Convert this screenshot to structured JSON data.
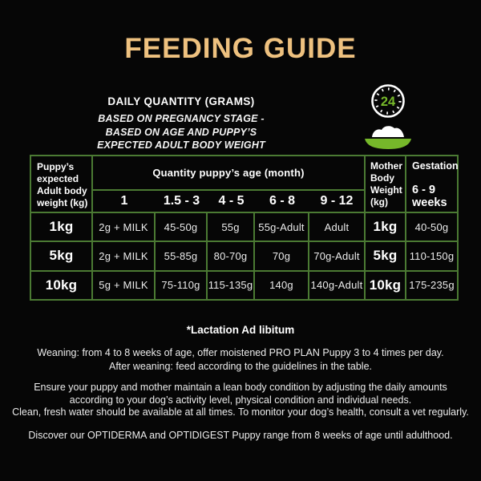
{
  "colors": {
    "gold": "#eec17f",
    "accent_green": "#76b82a",
    "table_border_green": "#4b7a33"
  },
  "title": "FEEDING GUIDE",
  "subtitle": {
    "heading": "DAILY QUANTITY (GRAMS)",
    "lines": [
      "BASED ON PREGNANCY STAGE -",
      "BASED ON AGE AND PUPPY’S",
      "EXPECTED ADULT BODY WEIGHT"
    ]
  },
  "icons": {
    "clock": "24h-clock-icon",
    "clock_label": "24",
    "bowl": "food-bowl-icon"
  },
  "table": {
    "col1_header": "Puppy’s expected Adult body weight (kg)",
    "quantity_header": "Quantity puppy’s age (month)",
    "month_columns": [
      "1",
      "1.5 - 3",
      "4 - 5",
      "6 - 8",
      "9 - 12"
    ],
    "mother_header": "Mother Body Weight (kg)",
    "gestation_header": "Gestation",
    "gestation_sub": "6 - 9 weeks",
    "rows": [
      {
        "weight": "1kg",
        "values": [
          "2g + MILK",
          "45-50g",
          "55g",
          "55g-Adult",
          "Adult"
        ],
        "mother": "1kg",
        "gestation": "40-50g"
      },
      {
        "weight": "5kg",
        "values": [
          "2g + MILK",
          "55-85g",
          "80-70g",
          "70g",
          "70g-Adult"
        ],
        "mother": "5kg",
        "gestation": "110-150g"
      },
      {
        "weight": "10kg",
        "values": [
          "5g + MILK",
          "75-110g",
          "115-135g",
          "140g",
          "140g-Adult"
        ],
        "mother": "10kg",
        "gestation": "175-235g"
      }
    ]
  },
  "notes": {
    "lactation": "*Lactation Ad libitum",
    "weaning_line1": "Weaning: from 4 to 8 weeks of age, offer moistened PRO PLAN Puppy 3 to 4 times per day.",
    "weaning_line2": "After weaning: feed according to the guidelines in the table.",
    "condition_line1": "Ensure your puppy and mother maintain a lean body condition by adjusting the daily amounts",
    "condition_line2": "according to your dog’s activity level, physical condition and individual needs.",
    "condition_line3": "Clean, fresh water should be available at all times. To monitor your dog’s health, consult a vet regularly.",
    "discover": "Discover our OPTIDERMA and OPTIDIGEST Puppy range from 8 weeks of age until adulthood."
  }
}
